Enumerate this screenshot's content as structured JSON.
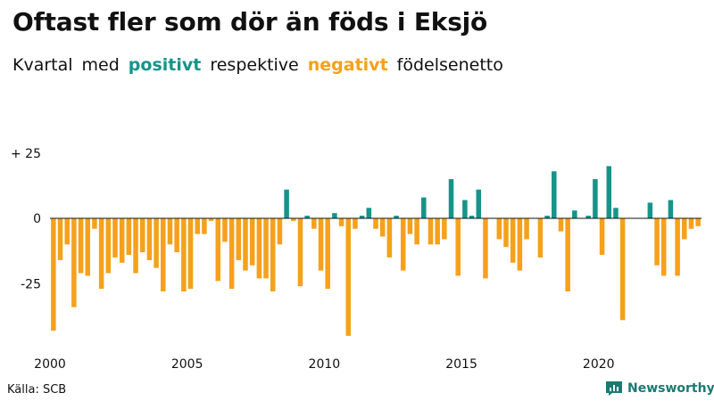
{
  "title": "Oftast fler som dör än föds i Eksjö",
  "subtitle": {
    "part1": "Kvartal",
    "part2": "med",
    "positive": "positivt",
    "part3": "respektive",
    "negative": "negativt",
    "part4": "födelsenetto"
  },
  "colors": {
    "positive": "#16948a",
    "negative": "#f5a11c",
    "axis_text": "#111111",
    "brand": "#1a7a72"
  },
  "source": "Källa: SCB",
  "brand": {
    "name": "Newsworthy",
    "icon": "bar-chart-icon"
  },
  "chart_data": {
    "type": "bar",
    "title": "Oftast fler som dör än föds i Eksjö",
    "xlabel": "",
    "ylabel": "",
    "ylim": [
      -45,
      25
    ],
    "y_ticks": [
      25,
      0,
      -25
    ],
    "y_tick_labels": [
      "+ 25",
      "0",
      "-25"
    ],
    "x_ticks": [
      2000,
      2005,
      2010,
      2015,
      2020
    ],
    "x_tick_labels": [
      "2000",
      "2005",
      "2010",
      "2015",
      "2020"
    ],
    "x_start": 2000,
    "period": "quarter",
    "legend": "none",
    "grid": false,
    "values": [
      -43,
      -16,
      -10,
      -34,
      -21,
      -22,
      -4,
      -27,
      -21,
      -15,
      -17,
      -14,
      -21,
      -13,
      -16,
      -19,
      -28,
      -10,
      -13,
      -28,
      -27,
      -6,
      -6,
      -1,
      -24,
      -9,
      -27,
      -16,
      -20,
      -18,
      -23,
      -23,
      -28,
      -10,
      11,
      -1,
      -26,
      1,
      -4,
      -20,
      -27,
      2,
      -3,
      -45,
      -4,
      1,
      4,
      -4,
      -7,
      -15,
      1,
      -20,
      -6,
      -10,
      8,
      -10,
      -10,
      -8,
      15,
      -22,
      7,
      1,
      11,
      -23,
      0,
      -8,
      -11,
      -17,
      -20,
      -8,
      0,
      -15,
      1,
      18,
      -5,
      -28,
      3,
      0,
      1,
      15,
      -14,
      20,
      4,
      -39,
      0,
      0,
      0,
      6,
      -18,
      -22,
      7,
      -22,
      -8,
      -4,
      -3
    ]
  }
}
